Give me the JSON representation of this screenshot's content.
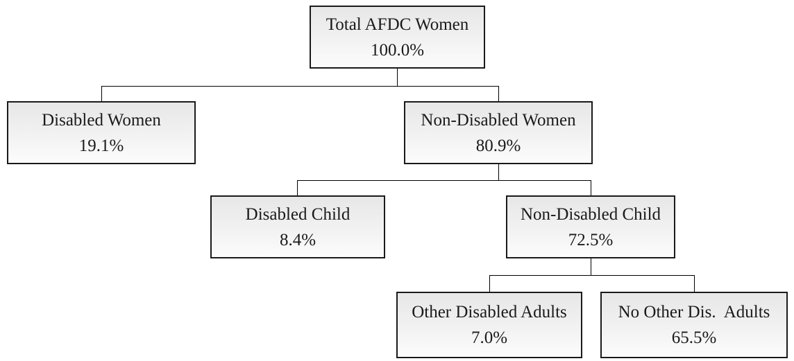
{
  "diagram": {
    "type": "tree-flowchart",
    "nodes": {
      "total": {
        "label": "Total AFDC Women",
        "value": "100.0%"
      },
      "disabled_women": {
        "label": "Disabled Women",
        "value": "19.1%"
      },
      "non_disabled_women": {
        "label": "Non-Disabled Women",
        "value": "80.9%"
      },
      "disabled_child": {
        "label": "Disabled Child",
        "value": "8.4%"
      },
      "non_disabled_child": {
        "label": "Non-Disabled Child",
        "value": "72.5%"
      },
      "other_disabled_adults": {
        "label": "Other Disabled Adults",
        "value": "7.0%"
      },
      "no_other_dis_adults": {
        "label": "No Other Dis.  Adults",
        "value": "65.5%"
      }
    },
    "edges": [
      {
        "from": "total",
        "to": "disabled_women"
      },
      {
        "from": "total",
        "to": "non_disabled_women"
      },
      {
        "from": "non_disabled_women",
        "to": "disabled_child"
      },
      {
        "from": "non_disabled_women",
        "to": "non_disabled_child"
      },
      {
        "from": "non_disabled_child",
        "to": "other_disabled_adults"
      },
      {
        "from": "non_disabled_child",
        "to": "no_other_dis_adults"
      }
    ],
    "colors": {
      "box_border": "#1a1a1a",
      "box_fill_top": "#e7e7e7",
      "box_fill_bottom": "#fcfcfc",
      "connector_line": "#000000",
      "text": "#1a1a1a",
      "background": "#ffffff"
    }
  }
}
